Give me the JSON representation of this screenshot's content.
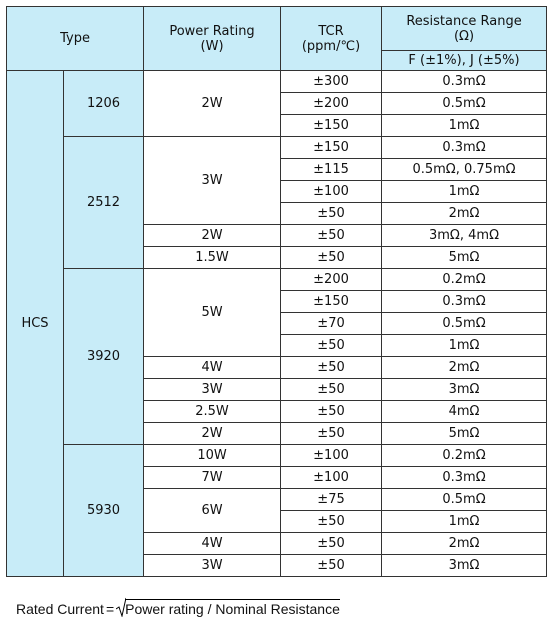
{
  "header": {
    "type": "Type",
    "power_rating": [
      "Power Rating",
      "(W)"
    ],
    "tcr": [
      "TCR",
      "(ppm/℃)"
    ],
    "resistance_range": [
      "Resistance Range",
      "(Ω)"
    ],
    "tolerance": "F (±1%), J (±5%)"
  },
  "series": "HCS",
  "groups": [
    {
      "size": "1206",
      "powers": [
        {
          "power": "2W",
          "entries": [
            {
              "tcr": "±300",
              "range": "0.3mΩ"
            },
            {
              "tcr": "±200",
              "range": "0.5mΩ"
            },
            {
              "tcr": "±150",
              "range": "1mΩ"
            }
          ]
        }
      ]
    },
    {
      "size": "2512",
      "powers": [
        {
          "power": "3W",
          "entries": [
            {
              "tcr": "±150",
              "range": "0.3mΩ"
            },
            {
              "tcr": "±115",
              "range": "0.5mΩ, 0.75mΩ"
            },
            {
              "tcr": "±100",
              "range": "1mΩ"
            },
            {
              "tcr": "±50",
              "range": "2mΩ"
            }
          ]
        },
        {
          "power": "2W",
          "entries": [
            {
              "tcr": "±50",
              "range": "3mΩ, 4mΩ"
            }
          ]
        },
        {
          "power": "1.5W",
          "entries": [
            {
              "tcr": "±50",
              "range": "5mΩ"
            }
          ]
        }
      ]
    },
    {
      "size": "3920",
      "powers": [
        {
          "power": "5W",
          "entries": [
            {
              "tcr": "±200",
              "range": "0.2mΩ"
            },
            {
              "tcr": "±150",
              "range": "0.3mΩ"
            },
            {
              "tcr": "±70",
              "range": "0.5mΩ"
            },
            {
              "tcr": "±50",
              "range": "1mΩ"
            }
          ]
        },
        {
          "power": "4W",
          "entries": [
            {
              "tcr": "±50",
              "range": "2mΩ"
            }
          ]
        },
        {
          "power": "3W",
          "entries": [
            {
              "tcr": "±50",
              "range": "3mΩ"
            }
          ]
        },
        {
          "power": "2.5W",
          "entries": [
            {
              "tcr": "±50",
              "range": "4mΩ"
            }
          ]
        },
        {
          "power": "2W",
          "entries": [
            {
              "tcr": "±50",
              "range": "5mΩ"
            }
          ]
        }
      ]
    },
    {
      "size": "5930",
      "powers": [
        {
          "power": "10W",
          "entries": [
            {
              "tcr": "±100",
              "range": "0.2mΩ"
            }
          ]
        },
        {
          "power": "7W",
          "entries": [
            {
              "tcr": "±100",
              "range": "0.3mΩ"
            }
          ]
        },
        {
          "power": "6W",
          "entries": [
            {
              "tcr": "±75",
              "range": "0.5mΩ"
            },
            {
              "tcr": "±50",
              "range": "1mΩ"
            }
          ]
        },
        {
          "power": "4W",
          "entries": [
            {
              "tcr": "±50",
              "range": "2mΩ"
            }
          ]
        },
        {
          "power": "3W",
          "entries": [
            {
              "tcr": "±50",
              "range": "3mΩ"
            }
          ]
        }
      ]
    }
  ],
  "formula": {
    "lhs": "Rated Current",
    "operator": "=",
    "rhs": "Power rating / Nominal Resistance"
  }
}
